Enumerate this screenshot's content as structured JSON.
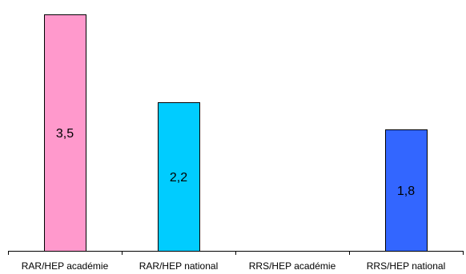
{
  "chart_data": {
    "type": "bar",
    "categories": [
      "RAR/HEP académie",
      "RAR/HEP national",
      "RRS/HEP académie",
      "RRS/HEP national"
    ],
    "values": [
      3.5,
      2.2,
      null,
      1.8
    ],
    "data_labels": [
      "3,5",
      "2,2",
      "",
      "1,8"
    ],
    "bar_colors": [
      "#ff99cc",
      "#00ccff",
      "#ffffff",
      "#3366ff"
    ],
    "title": "",
    "xlabel": "",
    "ylabel": "",
    "ylim": [
      0,
      3.6
    ],
    "grid": false,
    "legend": "none"
  }
}
